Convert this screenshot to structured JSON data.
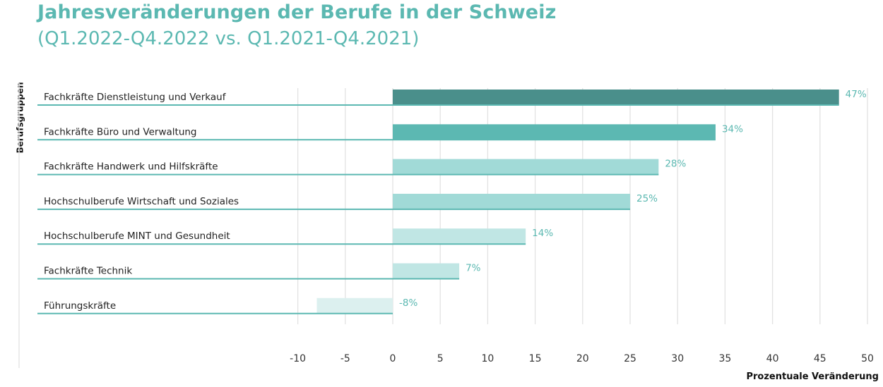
{
  "chart_data": {
    "type": "bar",
    "orientation": "horizontal",
    "title": "Jahresveränderungen der Berufe in der Schweiz",
    "subtitle": "(Q1.2022-Q4.2022 vs. Q1.2021-Q4.2021)",
    "xlabel": "Prozentuale Veränderung",
    "ylabel": "Berufsgruppen",
    "xlim": [
      -10,
      50
    ],
    "xticks": [
      -10,
      -5,
      0,
      5,
      10,
      15,
      20,
      25,
      30,
      35,
      40,
      45,
      50
    ],
    "xtick_labels": [
      "-10",
      "-5",
      "0",
      "5",
      "10",
      "15",
      "20",
      "25",
      "30",
      "35",
      "40",
      "45",
      "50"
    ],
    "grid": "vertical",
    "categories": [
      "Fachkräfte Dienstleistung und Verkauf",
      "Fachkräfte Büro und Verwaltung",
      "Fachkräfte Handwerk und Hilfskräfte",
      "Hochschulberufe Wirtschaft und Soziales",
      "Hochschulberufe MINT und Gesundheit",
      "Fachkräfte Technik",
      "Führungskräfte"
    ],
    "values": [
      47,
      34,
      28,
      25,
      14,
      7,
      -8
    ],
    "value_labels": [
      "47%",
      "34%",
      "28%",
      "25%",
      "14%",
      "7%",
      "-8%"
    ],
    "bar_colors": [
      "#4a8f8b",
      "#5cb8b2",
      "#a1dad7",
      "#a1dad7",
      "#c0e6e4",
      "#c0e6e4",
      "#dcf0ef"
    ],
    "accent_color": "#5bb8b1",
    "underline_color": "#5cb8b2",
    "grid_color": "#e2e2e2"
  }
}
